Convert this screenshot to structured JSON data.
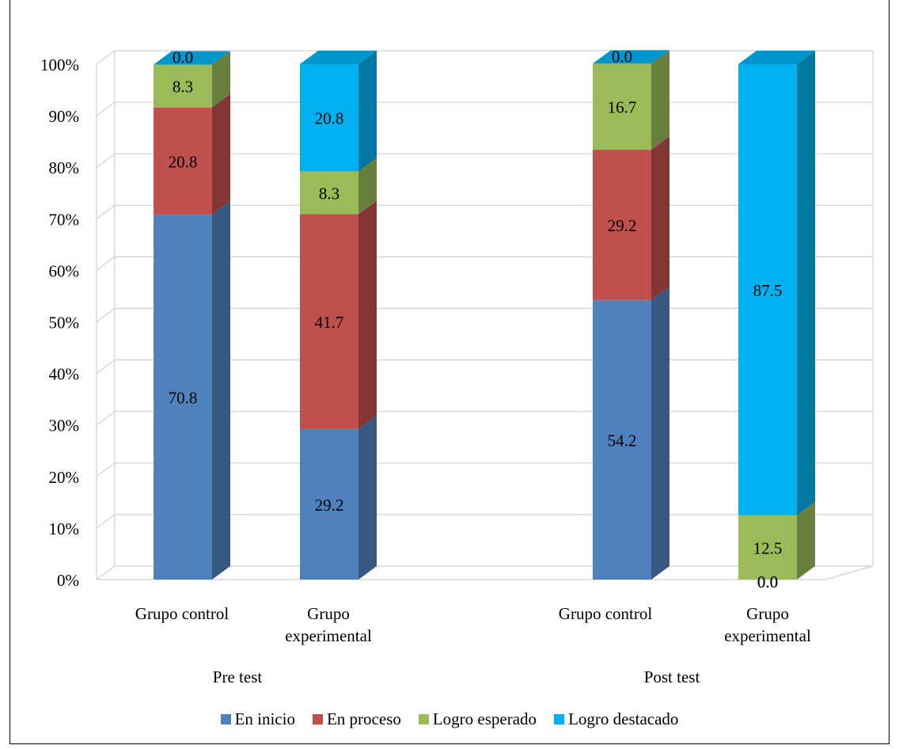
{
  "chart_data": {
    "type": "bar",
    "stacked": true,
    "percent_axis": true,
    "view": "3d",
    "ylim": [
      0,
      100
    ],
    "y_ticks": [
      "0%",
      "10%",
      "20%",
      "30%",
      "40%",
      "50%",
      "60%",
      "70%",
      "80%",
      "90%",
      "100%"
    ],
    "groups": [
      {
        "label": "Pre test",
        "categories": [
          [
            "Grupo control"
          ],
          [
            "Grupo",
            "experimental"
          ]
        ]
      },
      {
        "label": "Post test",
        "categories": [
          [
            "Grupo control"
          ],
          [
            "Grupo",
            "experimental"
          ]
        ]
      }
    ],
    "series": [
      {
        "name": "En inicio",
        "color": "#4F81BD",
        "values": [
          70.8,
          29.2,
          54.2,
          0.0
        ],
        "labels": [
          "70.8",
          "29.2",
          "54.2",
          "0.0"
        ]
      },
      {
        "name": "En proceso",
        "color": "#C0504D",
        "values": [
          20.8,
          41.7,
          29.2,
          0.0
        ],
        "labels": [
          "20.8",
          "41.7",
          "29.2",
          "0.0"
        ]
      },
      {
        "name": "Logro esperado",
        "color": "#9BBB59",
        "values": [
          8.3,
          8.3,
          16.7,
          12.5
        ],
        "labels": [
          "8.3",
          "8.3",
          "16.7",
          "12.5"
        ]
      },
      {
        "name": "Logro destacado",
        "color": "#00B0F0",
        "values": [
          0.0,
          20.8,
          0.0,
          87.5
        ],
        "labels": [
          "0.0",
          "20.8",
          "0.0",
          "87.5"
        ]
      }
    ],
    "grid": true,
    "legend_position": "bottom"
  }
}
